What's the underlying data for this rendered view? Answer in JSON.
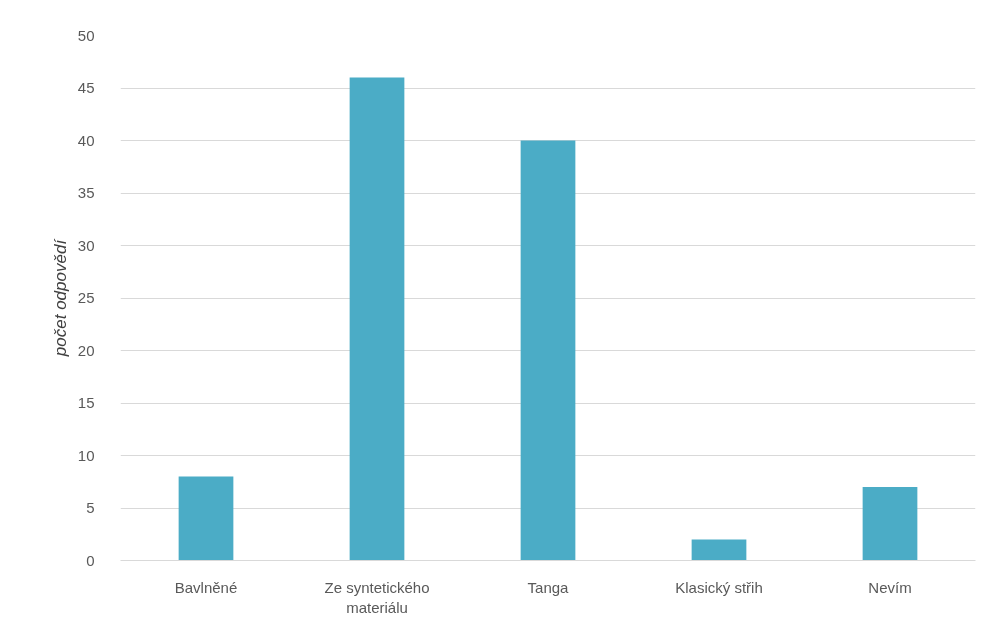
{
  "chart_data": {
    "type": "bar",
    "ylabel": "počet odpovědí",
    "categories": [
      "Bavlněné",
      "Ze syntetického materiálu",
      "Tanga",
      "Klasický střih",
      "Nevím"
    ],
    "values": [
      8,
      46,
      40,
      2,
      7
    ],
    "color": "#4bacc6",
    "ylim": [
      0,
      50
    ],
    "yticks": [
      0,
      5,
      10,
      15,
      20,
      25,
      30,
      35,
      40,
      45,
      50
    ],
    "grid": "y"
  }
}
